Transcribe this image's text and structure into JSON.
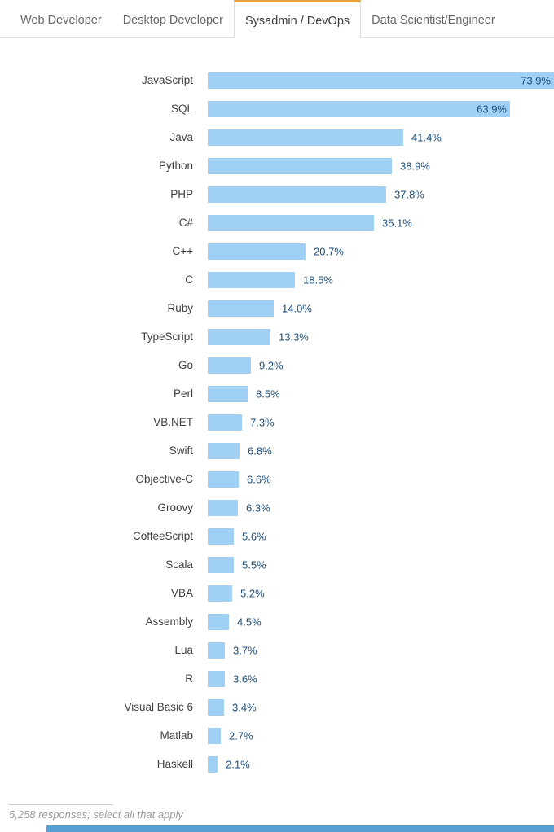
{
  "tabs": [
    {
      "label": "Web Developer",
      "active": false
    },
    {
      "label": "Desktop Developer",
      "active": false
    },
    {
      "label": "Sysadmin / DevOps",
      "active": true
    },
    {
      "label": "Data Scientist/Engineer",
      "active": false
    }
  ],
  "chart_data": {
    "type": "bar",
    "orientation": "horizontal",
    "title": "",
    "xlabel": "",
    "ylabel": "",
    "xlim": [
      0,
      75
    ],
    "grid": false,
    "categories": [
      "JavaScript",
      "SQL",
      "Java",
      "Python",
      "PHP",
      "C#",
      "C++",
      "C",
      "Ruby",
      "TypeScript",
      "Go",
      "Perl",
      "VB.NET",
      "Swift",
      "Objective-C",
      "Groovy",
      "CoffeeScript",
      "Scala",
      "VBA",
      "Assembly",
      "Lua",
      "R",
      "Visual Basic 6",
      "Matlab",
      "Haskell"
    ],
    "values": [
      73.9,
      63.9,
      41.4,
      38.9,
      37.8,
      35.1,
      20.7,
      18.5,
      14.0,
      13.3,
      9.2,
      8.5,
      7.3,
      6.8,
      6.6,
      6.3,
      5.6,
      5.5,
      5.2,
      4.5,
      3.7,
      3.6,
      3.4,
      2.7,
      2.1
    ],
    "value_labels": [
      "73.9%",
      "63.9%",
      "41.4%",
      "38.9%",
      "37.8%",
      "35.1%",
      "20.7%",
      "18.5%",
      "14.0%",
      "13.3%",
      "9.2%",
      "8.5%",
      "7.3%",
      "6.8%",
      "6.6%",
      "6.3%",
      "5.6%",
      "5.5%",
      "5.2%",
      "4.5%",
      "3.7%",
      "3.6%",
      "3.4%",
      "2.7%",
      "2.1%"
    ],
    "inside_labels": [
      "JavaScript",
      "SQL"
    ],
    "legend": null
  },
  "footer": {
    "note": "5,258 responses; select all that apply"
  },
  "colors": {
    "bar": "#A0D1F4",
    "value_label": "#1E4E79",
    "category_label": "#3F3F3F",
    "tab_accent": "#E9A23B",
    "tab_border": "#DDDDDD",
    "footer_text": "#9B9B9B",
    "bottom_strip": "#56A0D3"
  }
}
